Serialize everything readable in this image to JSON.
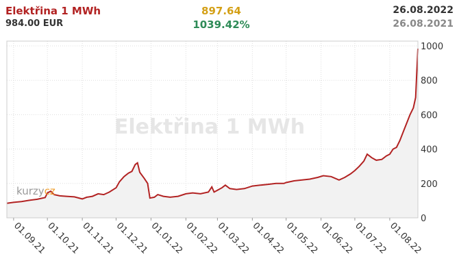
{
  "header": {
    "title": "Elektřina 1 MWh",
    "price": "984.00 EUR",
    "change_abs": "897.64",
    "change_pct": "1039.42%",
    "date_end": "26.08.2022",
    "date_start": "26.08.2021"
  },
  "watermark": "Elektřina 1 MWh",
  "logo": {
    "text": "kurzy",
    "accent": "cz"
  },
  "colors": {
    "line": "#b22222",
    "fill": "#f2f2f2",
    "grid": "#dddddd"
  },
  "chart_data": {
    "type": "area",
    "title": "Elektřina 1 MWh",
    "ylim": [
      0,
      1000
    ],
    "yticks": [
      0,
      200,
      400,
      600,
      800,
      1000
    ],
    "xlim": [
      "2021-08-26",
      "2022-08-26"
    ],
    "xticks": [
      {
        "date": "2021-09-01",
        "label": "01.09.21"
      },
      {
        "date": "2021-10-01",
        "label": "01.10.21"
      },
      {
        "date": "2021-11-01",
        "label": "01.11.21"
      },
      {
        "date": "2021-12-01",
        "label": "01.12.21"
      },
      {
        "date": "2022-01-01",
        "label": "01.01.22"
      },
      {
        "date": "2022-02-01",
        "label": "01.02.22"
      },
      {
        "date": "2022-03-01",
        "label": "01.03.22"
      },
      {
        "date": "2022-04-01",
        "label": "01.04.22"
      },
      {
        "date": "2022-05-01",
        "label": "01.05.22"
      },
      {
        "date": "2022-06-01",
        "label": "01.06.22"
      },
      {
        "date": "2022-07-01",
        "label": "01.07.22"
      },
      {
        "date": "2022-08-01",
        "label": "01.08.22"
      }
    ],
    "grid": true,
    "y_axis_position": "right",
    "series": [
      {
        "points": [
          [
            "2021-08-26",
            85
          ],
          [
            "2021-09-01",
            90
          ],
          [
            "2021-09-08",
            95
          ],
          [
            "2021-09-15",
            102
          ],
          [
            "2021-09-22",
            108
          ],
          [
            "2021-09-29",
            118
          ],
          [
            "2021-10-01",
            145
          ],
          [
            "2021-10-04",
            155
          ],
          [
            "2021-10-07",
            135
          ],
          [
            "2021-10-12",
            128
          ],
          [
            "2021-10-18",
            125
          ],
          [
            "2021-10-25",
            122
          ],
          [
            "2021-11-01",
            110
          ],
          [
            "2021-11-05",
            120
          ],
          [
            "2021-11-10",
            125
          ],
          [
            "2021-11-15",
            140
          ],
          [
            "2021-11-20",
            135
          ],
          [
            "2021-11-25",
            150
          ],
          [
            "2021-12-01",
            175
          ],
          [
            "2021-12-04",
            210
          ],
          [
            "2021-12-08",
            240
          ],
          [
            "2021-12-12",
            260
          ],
          [
            "2021-12-15",
            270
          ],
          [
            "2021-12-18",
            310
          ],
          [
            "2021-12-20",
            320
          ],
          [
            "2021-12-22",
            265
          ],
          [
            "2021-12-26",
            230
          ],
          [
            "2021-12-29",
            200
          ],
          [
            "2021-12-31",
            115
          ],
          [
            "2022-01-04",
            120
          ],
          [
            "2022-01-07",
            135
          ],
          [
            "2022-01-12",
            125
          ],
          [
            "2022-01-18",
            120
          ],
          [
            "2022-01-25",
            125
          ],
          [
            "2022-02-01",
            140
          ],
          [
            "2022-02-07",
            145
          ],
          [
            "2022-02-14",
            140
          ],
          [
            "2022-02-21",
            150
          ],
          [
            "2022-02-24",
            180
          ],
          [
            "2022-02-26",
            150
          ],
          [
            "2022-03-01",
            160
          ],
          [
            "2022-03-05",
            175
          ],
          [
            "2022-03-08",
            190
          ],
          [
            "2022-03-12",
            170
          ],
          [
            "2022-03-18",
            165
          ],
          [
            "2022-03-25",
            170
          ],
          [
            "2022-04-01",
            185
          ],
          [
            "2022-04-08",
            190
          ],
          [
            "2022-04-15",
            195
          ],
          [
            "2022-04-22",
            200
          ],
          [
            "2022-04-29",
            200
          ],
          [
            "2022-05-01",
            205
          ],
          [
            "2022-05-08",
            215
          ],
          [
            "2022-05-15",
            220
          ],
          [
            "2022-05-22",
            225
          ],
          [
            "2022-05-29",
            235
          ],
          [
            "2022-06-03",
            245
          ],
          [
            "2022-06-10",
            240
          ],
          [
            "2022-06-17",
            220
          ],
          [
            "2022-06-22",
            235
          ],
          [
            "2022-06-27",
            255
          ],
          [
            "2022-07-01",
            275
          ],
          [
            "2022-07-05",
            300
          ],
          [
            "2022-07-09",
            330
          ],
          [
            "2022-07-12",
            370
          ],
          [
            "2022-07-16",
            350
          ],
          [
            "2022-07-20",
            335
          ],
          [
            "2022-07-25",
            340
          ],
          [
            "2022-07-29",
            360
          ],
          [
            "2022-08-01",
            370
          ],
          [
            "2022-08-04",
            400
          ],
          [
            "2022-08-07",
            410
          ],
          [
            "2022-08-10",
            450
          ],
          [
            "2022-08-13",
            500
          ],
          [
            "2022-08-16",
            550
          ],
          [
            "2022-08-19",
            600
          ],
          [
            "2022-08-22",
            640
          ],
          [
            "2022-08-24",
            700
          ],
          [
            "2022-08-25",
            850
          ],
          [
            "2022-08-26",
            984
          ]
        ]
      }
    ]
  }
}
